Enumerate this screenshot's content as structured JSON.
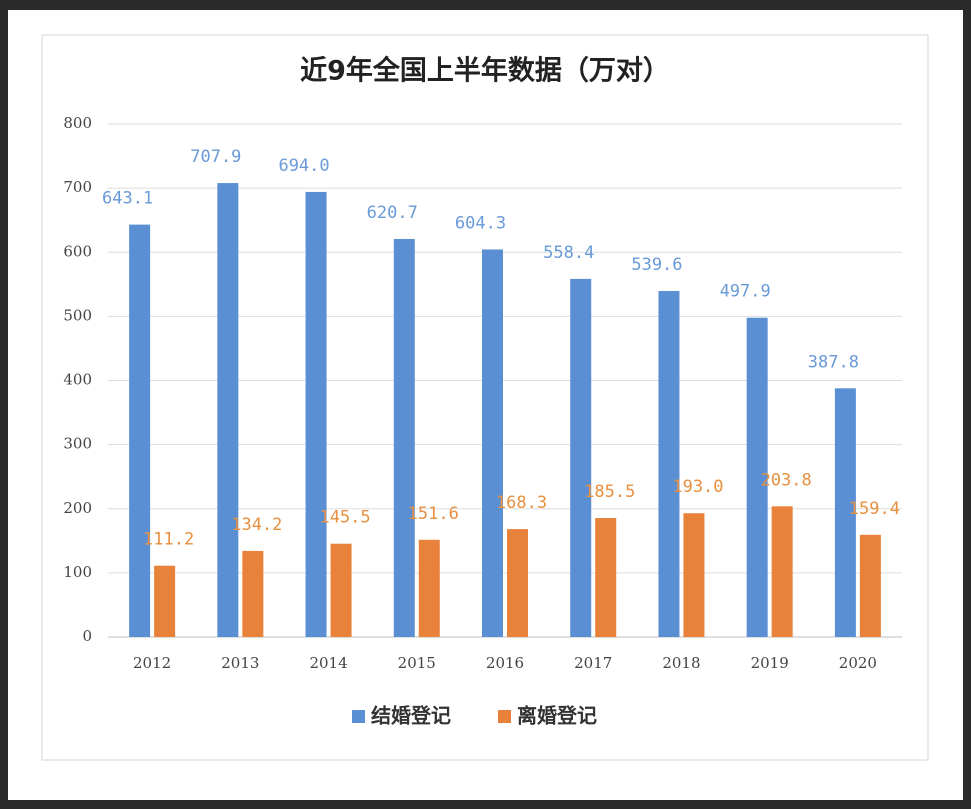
{
  "chart_data": {
    "type": "bar",
    "title": "近9年全国上半年数据（万对）",
    "categories": [
      "2012",
      "2013",
      "2014",
      "2015",
      "2016",
      "2017",
      "2018",
      "2019",
      "2020"
    ],
    "series": [
      {
        "name": "结婚登记",
        "color": "#5b8fd4",
        "label_color": "#6a9ad8",
        "values": [
          643.1,
          707.9,
          694.0,
          620.7,
          604.3,
          558.4,
          539.6,
          497.9,
          387.8
        ],
        "value_labels": [
          "643.1",
          "707.9",
          "694.0",
          "620.7",
          "604.3",
          "558.4",
          "539.6",
          "497.9",
          "387.8"
        ]
      },
      {
        "name": "离婚登记",
        "color": "#e8823b",
        "label_color": "#e8903f",
        "values": [
          111.2,
          134.2,
          145.5,
          151.6,
          168.3,
          185.5,
          193.0,
          203.8,
          159.4
        ],
        "value_labels": [
          "111.2",
          "134.2",
          "145.5",
          "151.6",
          "168.3",
          "185.5",
          "193.0",
          "203.8",
          "159.4"
        ]
      }
    ],
    "ylim": [
      0,
      800
    ],
    "yticks": [
      0,
      100,
      200,
      300,
      400,
      500,
      600,
      700,
      800
    ],
    "grid": true,
    "legend": "bottom"
  }
}
